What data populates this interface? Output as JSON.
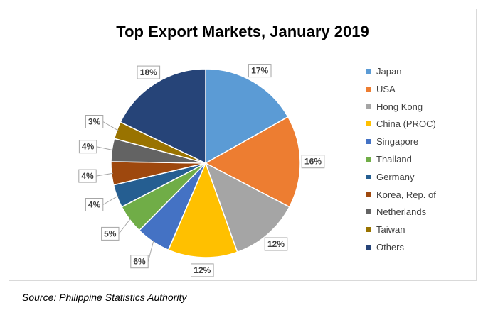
{
  "chart_data": {
    "type": "pie",
    "title": "Top Export Markets, January 2019",
    "categories": [
      "Japan",
      "USA",
      "Hong Kong",
      "China (PROC)",
      "Singapore",
      "Thailand",
      "Germany",
      "Korea, Rep. of",
      "Netherlands",
      "Taiwan",
      "Others"
    ],
    "values": [
      17,
      16,
      12,
      12,
      6,
      5,
      4,
      4,
      4,
      3,
      18
    ],
    "data_labels": [
      "17%",
      "16%",
      "12%",
      "12%",
      "6%",
      "5%",
      "4%",
      "4%",
      "4%",
      "3%",
      "18%"
    ],
    "colors": [
      "#5b9bd5",
      "#ed7d31",
      "#a5a5a5",
      "#ffc000",
      "#4472c4",
      "#70ad47",
      "#255e91",
      "#9e480e",
      "#636363",
      "#997300",
      "#264478"
    ],
    "legend_position": "right"
  },
  "source": "Source: Philippine Statistics Authority"
}
